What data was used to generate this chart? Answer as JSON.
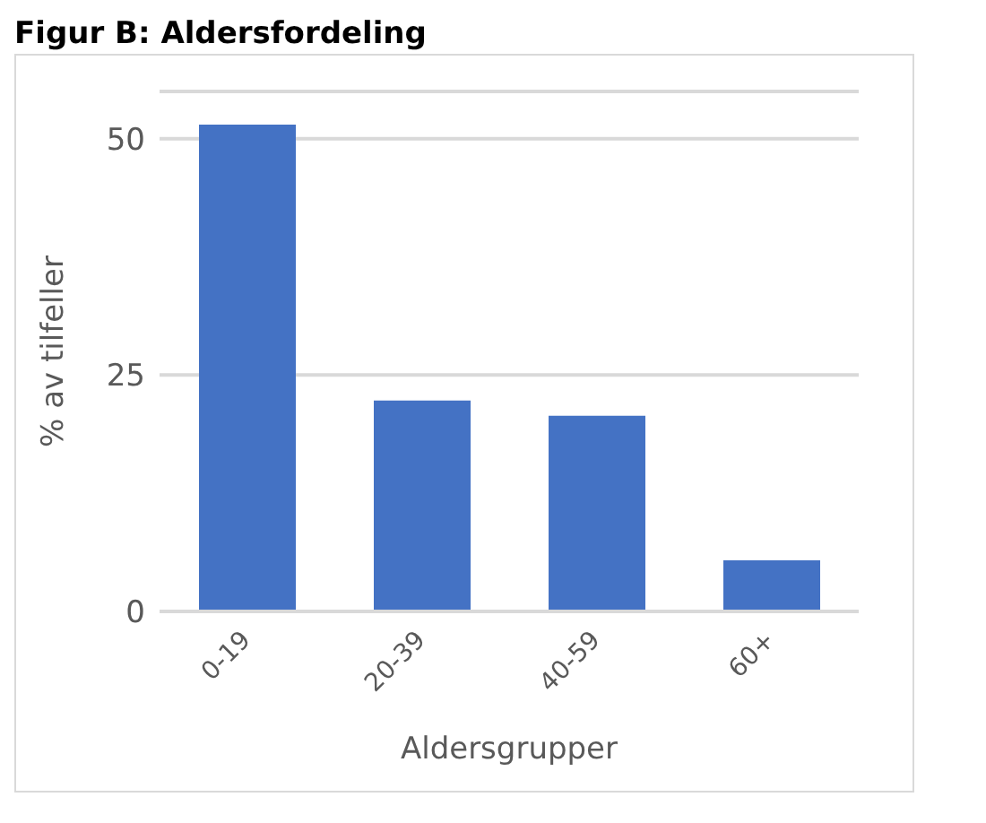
{
  "chart_data": {
    "type": "bar",
    "title": "Figur B: Aldersfordeling",
    "xlabel": "Aldersgrupper",
    "ylabel": "% av tilfeller",
    "categories": [
      "0-19",
      "20-39",
      "40-59",
      "60+"
    ],
    "values": [
      51.5,
      22.3,
      20.7,
      5.4
    ],
    "color": "#4472c4",
    "ylim": [
      0,
      55
    ],
    "yticks": [
      0,
      25,
      50
    ],
    "grid": "y"
  }
}
